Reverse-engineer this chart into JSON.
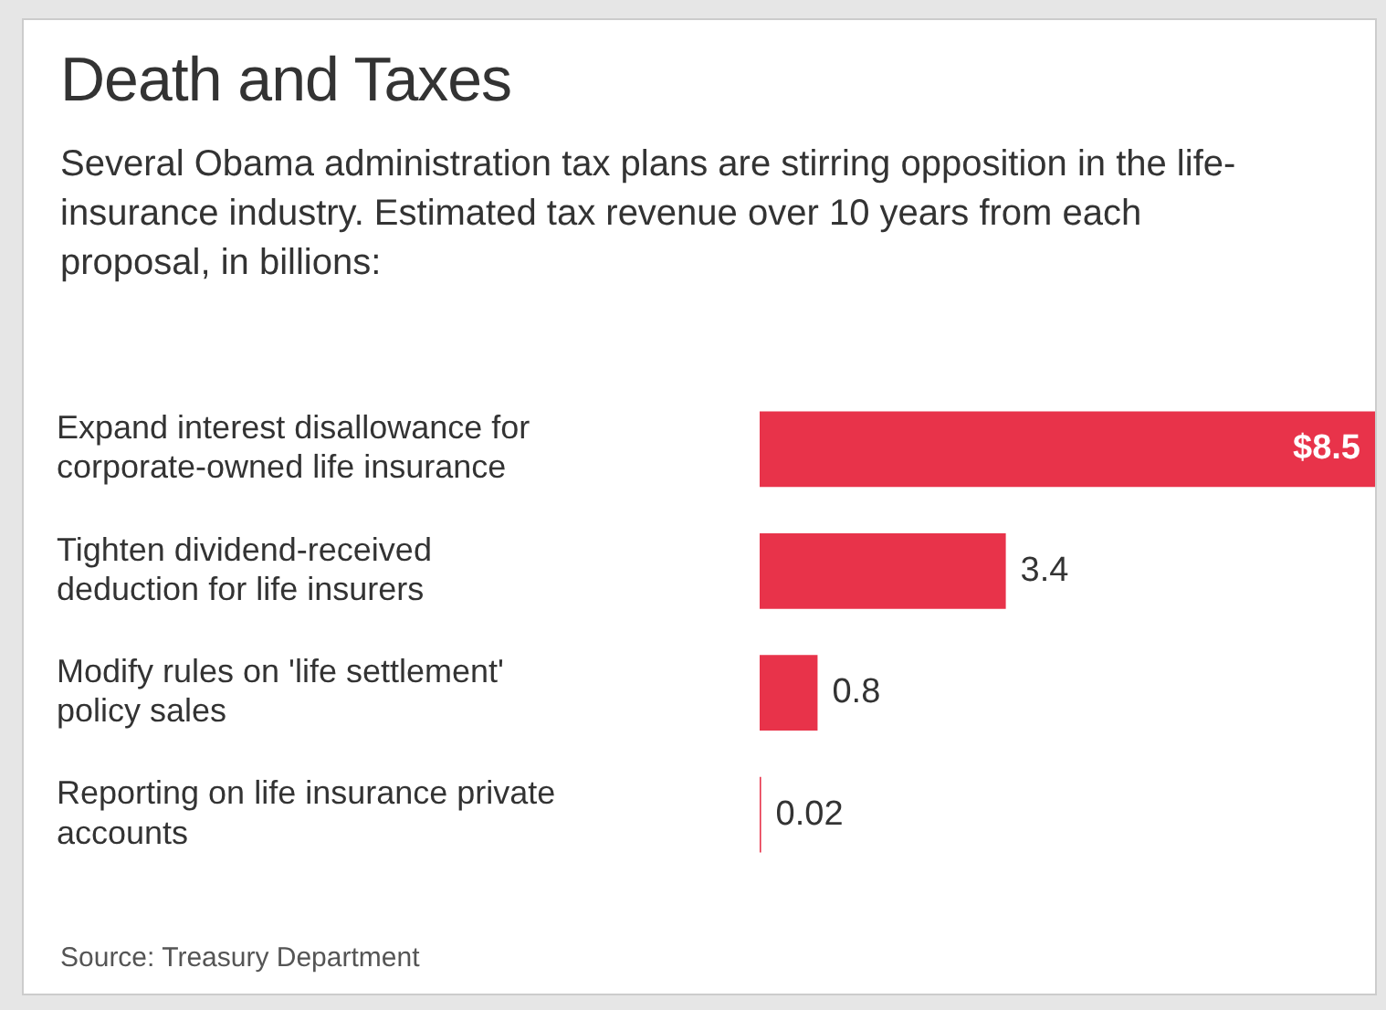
{
  "chart_data": {
    "type": "bar",
    "orientation": "horizontal",
    "title": "Death and Taxes",
    "subtitle": "Several Obama administration tax plans are stirring opposition in the life-insurance industry. Estimated tax revenue over 10 years from each proposal, in billions:",
    "categories": [
      "Expand interest disallowance for corporate-owned life insurance",
      "Tighten dividend-received deduction for life insurers",
      "Modify rules on 'life settlement' policy sales",
      "Reporting on life insurance private accounts"
    ],
    "values": [
      8.5,
      3.4,
      0.8,
      0.02
    ],
    "value_labels": [
      "$8.5",
      "3.4",
      "0.8",
      "0.02"
    ],
    "color": "#e8334a",
    "legend": false,
    "tick_labels": "y",
    "annotations": [
      "Source: Treasury Department"
    ]
  }
}
